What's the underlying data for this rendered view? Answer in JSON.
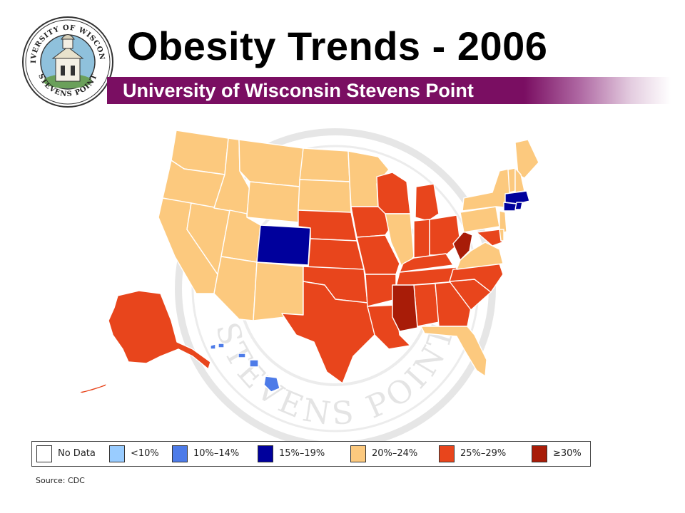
{
  "title": "Obesity Trends - 2006",
  "subtitle": "University of Wisconsin Stevens Point",
  "seal": {
    "top_text": "UNIVERSITY OF WISCONSIN",
    "bottom_text": "STEVENS POINT"
  },
  "watermark": {
    "text": "STEVENS POINT"
  },
  "colors": {
    "banner": "#7a0e62",
    "no_data": "#ffffff",
    "under_10": "#99ccff",
    "r10_14": "#4d7be8",
    "r15_19": "#00009c",
    "r20_24": "#fcc97e",
    "r25_29": "#e8451c",
    "r30_plus": "#a81c08"
  },
  "legend": [
    {
      "label": "No Data",
      "color": "#ffffff"
    },
    {
      "label": "<10%",
      "color": "#99ccff"
    },
    {
      "label": "10%–14%",
      "color": "#4d7be8"
    },
    {
      "label": "15%–19%",
      "color": "#00009c"
    },
    {
      "label": "20%–24%",
      "color": "#fcc97e"
    },
    {
      "label": "25%–29%",
      "color": "#e8451c"
    },
    {
      "label": "≥30%",
      "color": "#a81c08"
    }
  ],
  "source": "Source: CDC"
}
